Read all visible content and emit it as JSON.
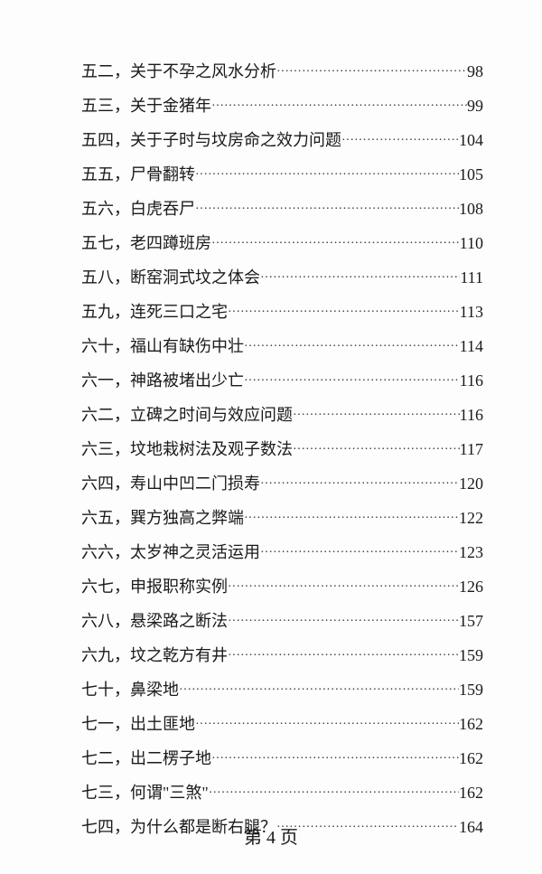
{
  "toc": [
    {
      "num": "五二，",
      "title": "关于不孕之风水分析",
      "page": "98"
    },
    {
      "num": "五三，",
      "title": "关于金猪年",
      "page": "99"
    },
    {
      "num": "五四，",
      "title": "关于子时与坟房命之效力问题",
      "page": "104"
    },
    {
      "num": "五五，",
      "title": "尸骨翻转",
      "page": "105"
    },
    {
      "num": "五六，",
      "title": "白虎吞尸",
      "page": "108"
    },
    {
      "num": "五七，",
      "title": "老四蹲班房",
      "page": "110"
    },
    {
      "num": "五八，",
      "title": "断窑洞式坟之体会",
      "page": "111"
    },
    {
      "num": "五九，",
      "title": "连死三口之宅",
      "page": "113"
    },
    {
      "num": "六十，",
      "title": "福山有缺伤中壮",
      "page": "114"
    },
    {
      "num": "六一，",
      "title": "神路被堵出少亡",
      "page": "116"
    },
    {
      "num": "六二，",
      "title": "立碑之时间与效应问题",
      "page": "116"
    },
    {
      "num": "六三，",
      "title": "坟地栽树法及观子数法",
      "page": "117"
    },
    {
      "num": "六四，",
      "title": "寿山中凹二门损寿",
      "page": "120"
    },
    {
      "num": "六五，",
      "title": "巽方独高之弊端",
      "page": "122"
    },
    {
      "num": "六六，",
      "title": "太岁神之灵活运用",
      "page": "123"
    },
    {
      "num": "六七，",
      "title": "申报职称实例",
      "page": "126"
    },
    {
      "num": "六八，",
      "title": "悬梁路之断法",
      "page": "157"
    },
    {
      "num": "六九，",
      "title": "坟之乾方有井",
      "page": "159"
    },
    {
      "num": "七十，",
      "title": "鼻梁地",
      "page": "159"
    },
    {
      "num": "七一，",
      "title": "出土匪地",
      "page": "162"
    },
    {
      "num": "七二，",
      "title": "出二楞子地",
      "page": "162"
    },
    {
      "num": "七三，",
      "title": "何谓\"三煞\"",
      "page": "162"
    },
    {
      "num": "七四，",
      "title": "为什么都是断右腿？",
      "page": "164"
    }
  ],
  "footer": "第 4 页"
}
